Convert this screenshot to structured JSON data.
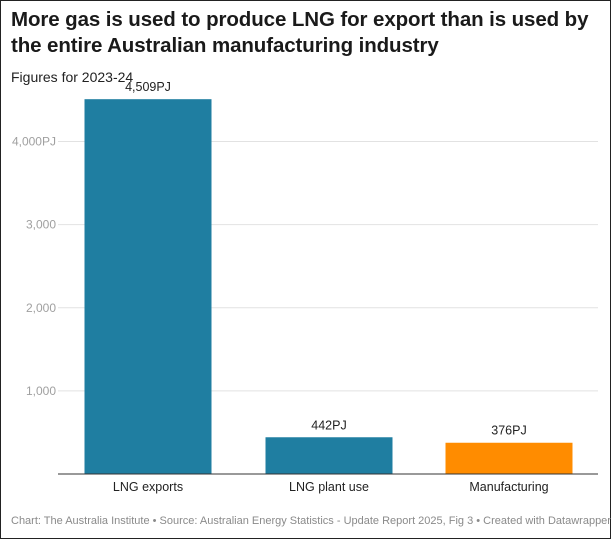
{
  "title": "More gas is used to produce LNG for export than is used by the entire Australian manufacturing industry",
  "subtitle": "Figures for 2023-24",
  "footer": "Chart: The Australia Institute  • Source: Australian Energy Statistics - Update Report 2025, Fig 3 • Created with Datawrapper",
  "chart_data": {
    "type": "bar",
    "title": "More gas is used to produce LNG for export than is used by the entire Australian manufacturing industry",
    "subtitle": "Figures for 2023-24",
    "xlabel": "",
    "ylabel": "",
    "unit": "PJ",
    "ylim": [
      0,
      4800
    ],
    "yticks": [
      {
        "value": 1000,
        "label": "1,000"
      },
      {
        "value": 2000,
        "label": "2,000"
      },
      {
        "value": 3000,
        "label": "3,000"
      },
      {
        "value": 4000,
        "label": "4,000PJ"
      }
    ],
    "grid": true,
    "categories": [
      "LNG exports",
      "LNG plant use",
      "Manufacturing"
    ],
    "values": [
      4509,
      442,
      376
    ],
    "value_labels": [
      "4,509PJ",
      "442PJ",
      "376PJ"
    ],
    "colors": [
      "#1f7ea1",
      "#1f7ea1",
      "#ff8c00"
    ]
  }
}
